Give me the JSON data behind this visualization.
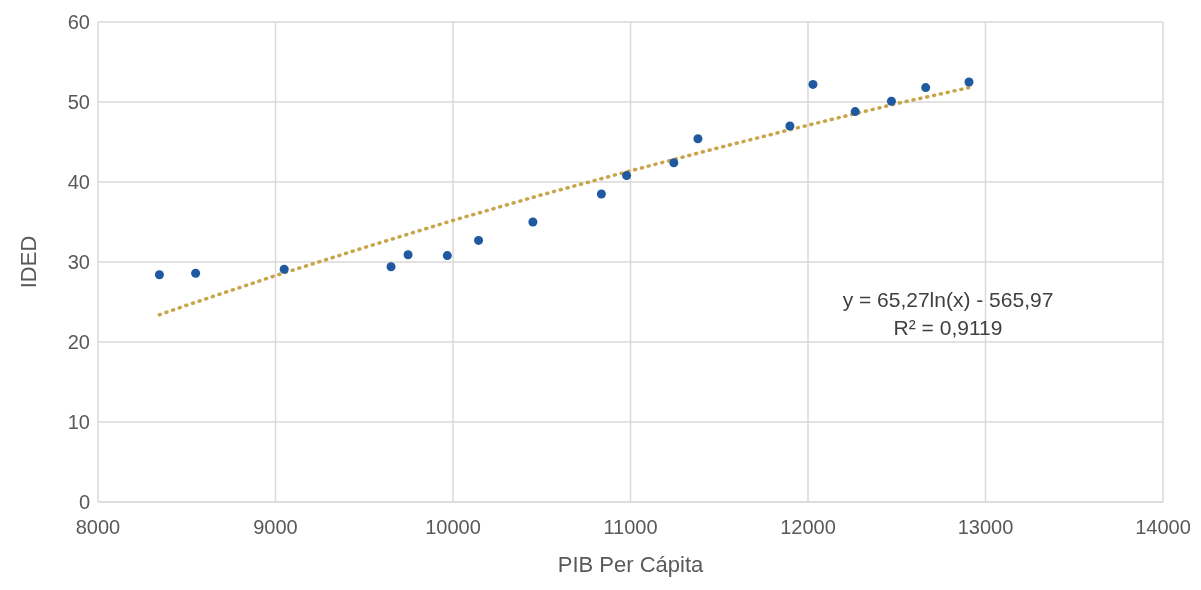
{
  "chart_data": {
    "type": "scatter",
    "xlabel": "PIB Per Cápita",
    "ylabel": "IDED",
    "xlim": [
      8000,
      14000
    ],
    "xticks": [
      8000,
      9000,
      10000,
      11000,
      12000,
      13000,
      14000
    ],
    "ylim": [
      0,
      60
    ],
    "yticks": [
      0,
      10,
      20,
      30,
      40,
      50,
      60
    ],
    "grid": true,
    "marker": "circle",
    "series": [
      {
        "type": "scatter",
        "color": "#1f5aa0",
        "x": [
          8346,
          8550,
          9049,
          9651,
          9747,
          9968,
          10144,
          10450,
          10836,
          10978,
          11244,
          11380,
          11898,
          12028,
          12266,
          12470,
          12663,
          12907
        ],
        "values": [
          28.4,
          28.6,
          29.1,
          29.4,
          30.9,
          30.8,
          32.7,
          35.0,
          38.5,
          40.8,
          42.4,
          45.4,
          47.0,
          52.2,
          48.8,
          50.1,
          51.8,
          52.5
        ]
      },
      {
        "type": "line",
        "color": "#c9a54a",
        "line_style": "dotted",
        "marker": "none",
        "x": [
          8346,
          8500,
          9000,
          9500,
          10000,
          10500,
          11000,
          11500,
          12000,
          12500,
          12907
        ],
        "values": [
          23.4,
          24.6,
          28.3,
          31.8,
          35.2,
          38.4,
          41.4,
          44.3,
          47.1,
          49.8,
          51.8
        ]
      }
    ],
    "annotations": [
      "y = 65,27ln(x) - 565,97",
      "R² = 0,9119"
    ]
  }
}
